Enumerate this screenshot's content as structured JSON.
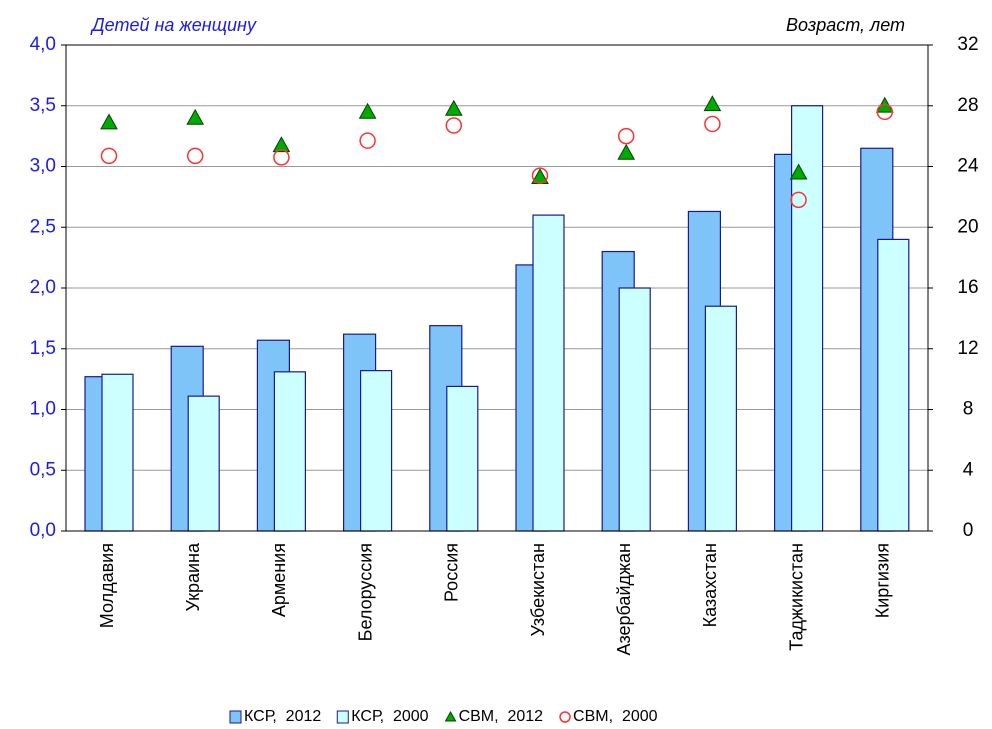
{
  "chart_data": {
    "type": "bar",
    "y_label": "Детей на женщину",
    "y2_label": "Возраст, лет",
    "categories": [
      "Молдавия",
      "Украина",
      "Армения",
      "Белоруссия",
      "Россия",
      "Узбекистан",
      "Азербайджан",
      "Казахстан",
      "Таджикистан",
      "Киргизия"
    ],
    "series": [
      {
        "name": "КСР,  2012",
        "type": "bar",
        "color": "#7fc4f8",
        "values": [
          1.27,
          1.52,
          1.57,
          1.62,
          1.69,
          2.19,
          2.3,
          2.63,
          3.1,
          3.15
        ]
      },
      {
        "name": "КСР,  2000",
        "type": "bar",
        "color": "#ccffff",
        "values": [
          1.29,
          1.11,
          1.31,
          1.32,
          1.19,
          2.6,
          2.0,
          1.85,
          3.5,
          2.4
        ]
      },
      {
        "name": "СВМ,  2012",
        "type": "triangle",
        "axis": "y2",
        "color": "#00aa00",
        "values": [
          26.9,
          27.2,
          25.4,
          27.6,
          27.8,
          23.3,
          24.9,
          28.1,
          23.6,
          28.0
        ]
      },
      {
        "name": "СВМ,  2000",
        "type": "circle",
        "axis": "y2",
        "color": "#ff3333",
        "values": [
          24.7,
          24.7,
          24.6,
          25.7,
          26.7,
          23.4,
          26.0,
          26.8,
          21.8,
          27.6
        ]
      }
    ],
    "ylim": [
      0,
      4
    ],
    "yticks": [
      {
        "value": 0,
        "label": "0,0"
      },
      {
        "value": 0.5,
        "label": "0,5"
      },
      {
        "value": 1,
        "label": "1,0"
      },
      {
        "value": 1.5,
        "label": "1,5"
      },
      {
        "value": 2,
        "label": "2,0"
      },
      {
        "value": 2.5,
        "label": "2,5"
      },
      {
        "value": 3,
        "label": "3,0"
      },
      {
        "value": 3.5,
        "label": "3,5"
      },
      {
        "value": 4,
        "label": "4,0"
      }
    ],
    "y2lim": [
      0,
      32
    ],
    "y2ticks": [
      0,
      4,
      8,
      12,
      16,
      20,
      24,
      28,
      32
    ],
    "grid": true
  }
}
